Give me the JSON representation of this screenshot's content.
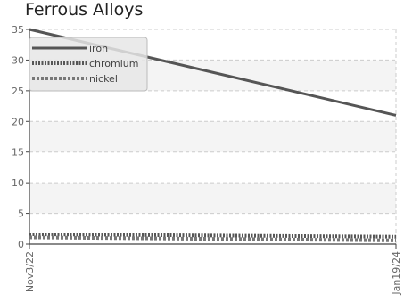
{
  "chart_data": {
    "type": "line",
    "title": "Ferrous Alloys",
    "xlabel": "",
    "ylabel": "",
    "x": [
      "Nov3/22",
      "Jan19/24"
    ],
    "x_tick_labels": [
      "Nov3/22",
      "Jan19/24"
    ],
    "ylim": [
      0,
      35
    ],
    "y_ticks": [
      0,
      5,
      10,
      15,
      20,
      25,
      30,
      35
    ],
    "grid": true,
    "legend_position": "top-left",
    "series": [
      {
        "name": "iron",
        "values": [
          35,
          21
        ],
        "color": "#555555",
        "style": "solid"
      },
      {
        "name": "chromium",
        "values": [
          1.6,
          1.2
        ],
        "color": "#555555",
        "style": "dotted"
      },
      {
        "name": "nickel",
        "values": [
          1.1,
          0.6
        ],
        "color": "#777777",
        "style": "dashed"
      }
    ]
  }
}
